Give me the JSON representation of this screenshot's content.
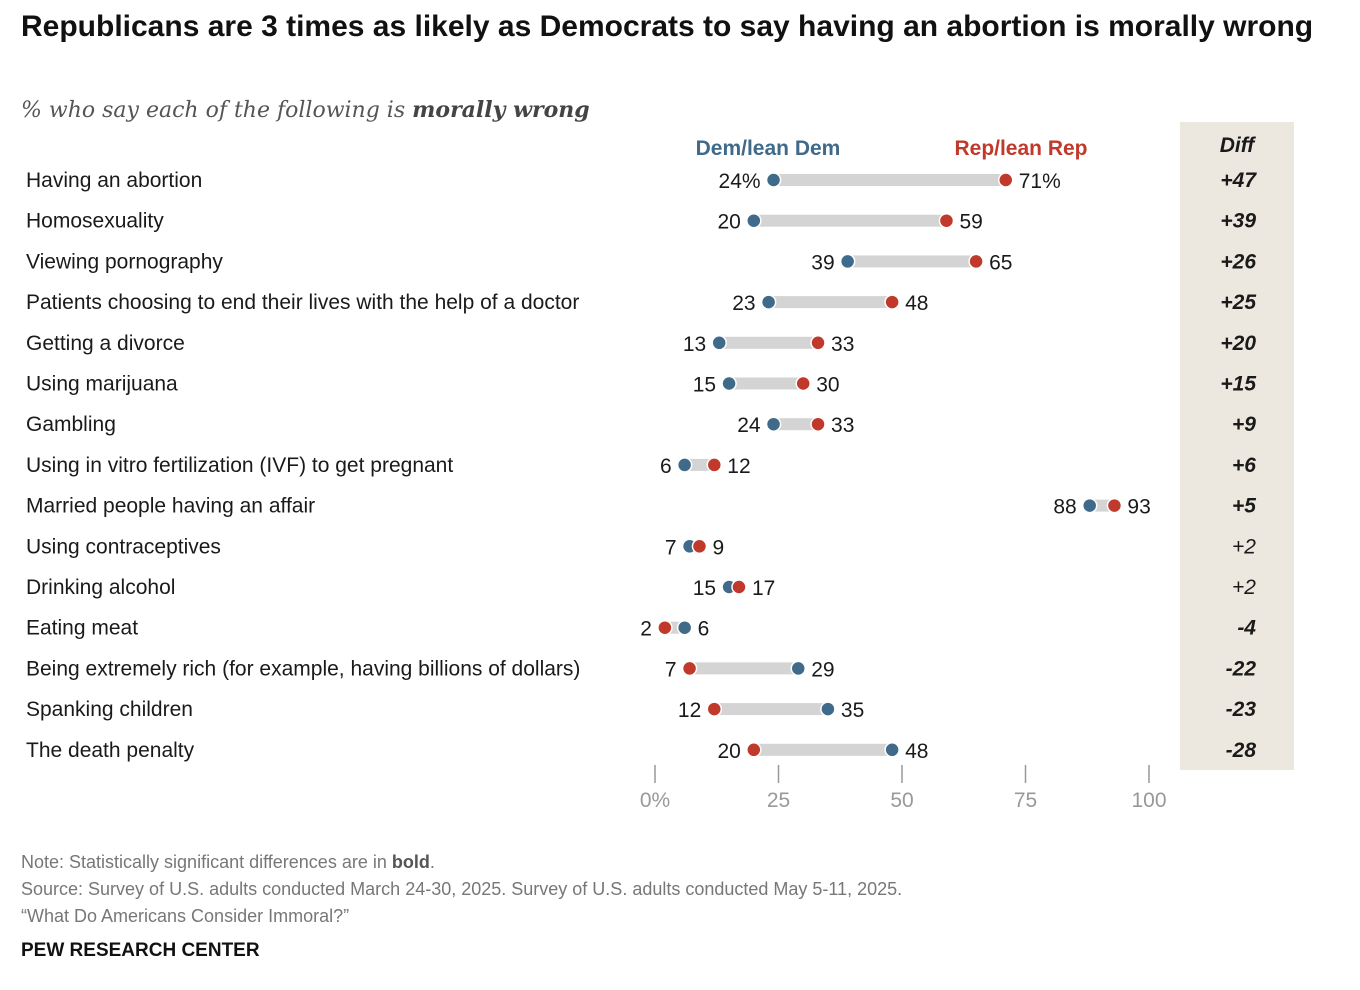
{
  "title": "Republicans are 3 times as likely as Democrats to say having an abortion is morally wrong",
  "subtitle_prefix": "% who say each of the following is ",
  "subtitle_emphasis": "morally wrong",
  "colors": {
    "dem": "#3f6a8a",
    "rep": "#c0392b",
    "bar": "#d4d4d4",
    "diff_bg": "#ede8df",
    "axis": "#999999"
  },
  "chart_data": {
    "type": "dot-range",
    "legend": {
      "dem": "Dem/lean Dem",
      "rep": "Rep/lean Rep"
    },
    "diff_header": "Diff",
    "xlim": [
      0,
      100
    ],
    "ticks": [
      0,
      25,
      50,
      75,
      100
    ],
    "tick_labels": [
      "0%",
      "25",
      "50",
      "75",
      "100"
    ],
    "rows": [
      {
        "label": "Having an abortion",
        "dem": 24,
        "rep": 71,
        "dem_label": "24%",
        "rep_label": "71%",
        "diff": "+47",
        "significant": true
      },
      {
        "label": "Homosexuality",
        "dem": 20,
        "rep": 59,
        "dem_label": "20",
        "rep_label": "59",
        "diff": "+39",
        "significant": true
      },
      {
        "label": "Viewing pornography",
        "dem": 39,
        "rep": 65,
        "dem_label": "39",
        "rep_label": "65",
        "diff": "+26",
        "significant": true
      },
      {
        "label": "Patients choosing to end their lives with the help of a doctor",
        "dem": 23,
        "rep": 48,
        "dem_label": "23",
        "rep_label": "48",
        "diff": "+25",
        "significant": true
      },
      {
        "label": "Getting a divorce",
        "dem": 13,
        "rep": 33,
        "dem_label": "13",
        "rep_label": "33",
        "diff": "+20",
        "significant": true
      },
      {
        "label": "Using marijuana",
        "dem": 15,
        "rep": 30,
        "dem_label": "15",
        "rep_label": "30",
        "diff": "+15",
        "significant": true
      },
      {
        "label": "Gambling",
        "dem": 24,
        "rep": 33,
        "dem_label": "24",
        "rep_label": "33",
        "diff": "+9",
        "significant": true
      },
      {
        "label": "Using in vitro fertilization (IVF) to get pregnant",
        "dem": 6,
        "rep": 12,
        "dem_label": "6",
        "rep_label": "12",
        "diff": "+6",
        "significant": true
      },
      {
        "label": "Married people having an affair",
        "dem": 88,
        "rep": 93,
        "dem_label": "88",
        "rep_label": "93",
        "diff": "+5",
        "significant": true
      },
      {
        "label": "Using contraceptives",
        "dem": 7,
        "rep": 9,
        "dem_label": "7",
        "rep_label": "9",
        "diff": "+2",
        "significant": false
      },
      {
        "label": "Drinking alcohol",
        "dem": 15,
        "rep": 17,
        "dem_label": "15",
        "rep_label": "17",
        "diff": "+2",
        "significant": false
      },
      {
        "label": "Eating meat",
        "dem": 6,
        "rep": 2,
        "dem_label": "6",
        "rep_label": "2",
        "diff": "-4",
        "significant": true
      },
      {
        "label": "Being extremely rich (for example, having billions of dollars)",
        "dem": 29,
        "rep": 7,
        "dem_label": "29",
        "rep_label": "7",
        "diff": "-22",
        "significant": true
      },
      {
        "label": "Spanking children",
        "dem": 35,
        "rep": 12,
        "dem_label": "35",
        "rep_label": "12",
        "diff": "-23",
        "significant": true
      },
      {
        "label": "The death penalty",
        "dem": 48,
        "rep": 20,
        "dem_label": "48",
        "rep_label": "20",
        "diff": "-28",
        "significant": true
      }
    ]
  },
  "footer": {
    "note_prefix": "Note: Statistically significant differences are in ",
    "note_bold": "bold",
    "note_suffix": ".",
    "source": "Source: Survey of U.S. adults conducted March 24-30, 2025. Survey of U.S. adults conducted May 5-11, 2025.",
    "report": "“What Do Americans Consider Immoral?”",
    "brand": "PEW RESEARCH CENTER"
  }
}
